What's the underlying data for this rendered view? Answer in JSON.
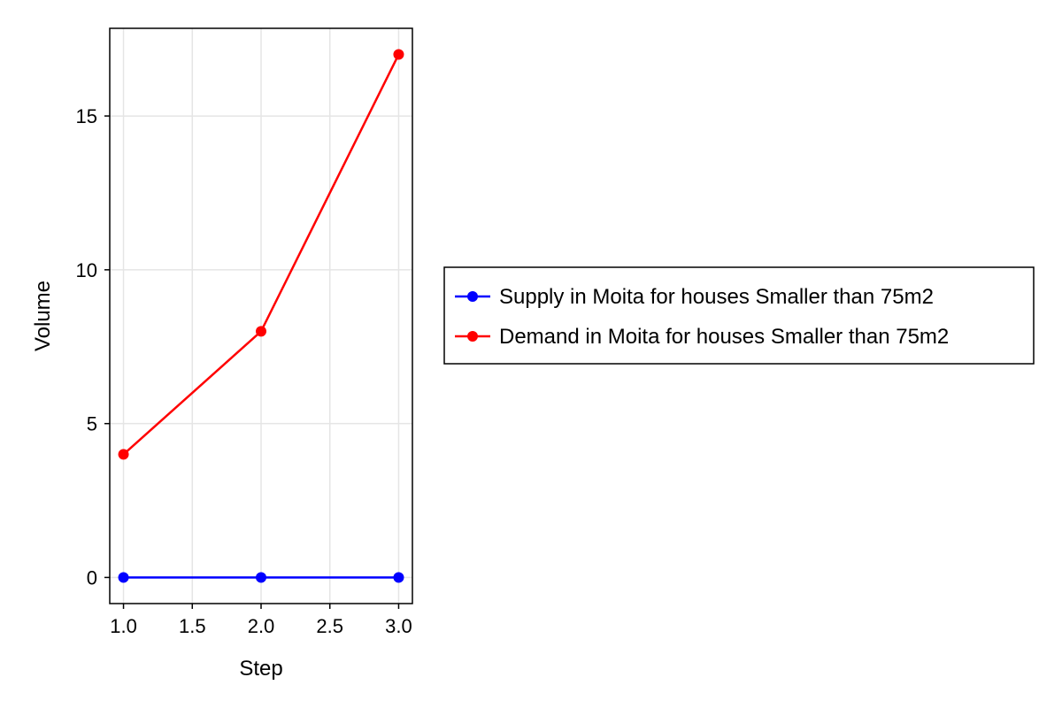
{
  "chart_data": {
    "type": "line",
    "xlabel": "Step",
    "ylabel": "Volume",
    "x": [
      1.0,
      2.0,
      3.0
    ],
    "xlim": [
      0.9,
      3.1
    ],
    "ylim": [
      -0.85,
      17.85
    ],
    "xticks": [
      "1.0",
      "1.5",
      "2.0",
      "2.5",
      "3.0"
    ],
    "xtick_values": [
      1.0,
      1.5,
      2.0,
      2.5,
      3.0
    ],
    "yticks": [
      "0",
      "5",
      "10",
      "15"
    ],
    "ytick_values": [
      0,
      5,
      10,
      15
    ],
    "grid": true,
    "legend_position": "right",
    "series": [
      {
        "name": "Supply in Moita for houses Smaller than 75m2",
        "color": "#0000ff",
        "values": [
          0,
          0,
          0
        ]
      },
      {
        "name": "Demand in Moita for houses Smaller than 75m2",
        "color": "#ff0000",
        "values": [
          4,
          8,
          17
        ]
      }
    ]
  }
}
